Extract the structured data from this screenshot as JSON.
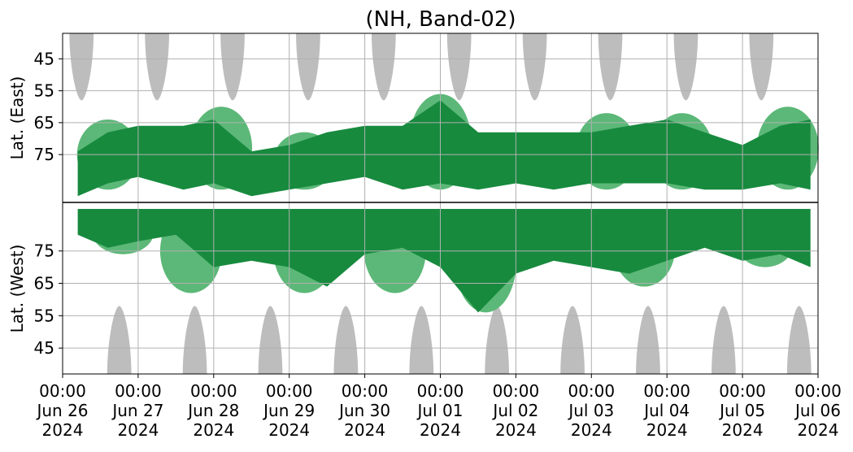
{
  "chart_data": {
    "type": "heatmap",
    "title": "(NH, Band-02)",
    "xlabel": "",
    "x_ticks": [
      {
        "time": "Jun 26 2024 00:00",
        "line1": "00:00",
        "line2": "Jun 26",
        "line3": "2024"
      },
      {
        "time": "Jun 27 2024 00:00",
        "line1": "00:00",
        "line2": "Jun 27",
        "line3": "2024"
      },
      {
        "time": "Jun 28 2024 00:00",
        "line1": "00:00",
        "line2": "Jun 28",
        "line3": "2024"
      },
      {
        "time": "Jun 29 2024 00:00",
        "line1": "00:00",
        "line2": "Jun 29",
        "line3": "2024"
      },
      {
        "time": "Jun 30 2024 00:00",
        "line1": "00:00",
        "line2": "Jun 30",
        "line3": "2024"
      },
      {
        "time": "Jul 01 2024 00:00",
        "line1": "00:00",
        "line2": "Jul 01",
        "line3": "2024"
      },
      {
        "time": "Jul 02 2024 00:00",
        "line1": "00:00",
        "line2": "Jul 02",
        "line3": "2024"
      },
      {
        "time": "Jul 03 2024 00:00",
        "line1": "00:00",
        "line2": "Jul 03",
        "line3": "2024"
      },
      {
        "time": "Jul 04 2024 00:00",
        "line1": "00:00",
        "line2": "Jul 04",
        "line3": "2024"
      },
      {
        "time": "Jul 05 2024 00:00",
        "line1": "00:00",
        "line2": "Jul 05",
        "line3": "2024"
      },
      {
        "time": "Jul 06 2024 00:00",
        "line1": "00:00",
        "line2": "Jul 06",
        "line3": "2024"
      }
    ],
    "upper_panel": {
      "ylabel": "Lat. (East)",
      "y_ticks": [
        45,
        55,
        65,
        75
      ],
      "lat_range": [
        90,
        37
      ]
    },
    "lower_panel": {
      "ylabel": "Lat. (West)",
      "y_ticks": [
        75,
        65,
        55,
        45
      ],
      "lat_range": [
        90,
        37
      ]
    },
    "grid": true,
    "colors": {
      "strong": "#178a3e",
      "weak": "#5cb878",
      "no_data": "#bdbdbd",
      "grid": "#b0b0b0",
      "divider": "#000000"
    },
    "no_data_lobes": {
      "upper_center_days": [
        0.25,
        1.25,
        2.25,
        3.25,
        4.25,
        5.25,
        6.25,
        7.25,
        8.25,
        9.25
      ],
      "lower_center_days": [
        0.75,
        1.75,
        2.75,
        3.75,
        4.75,
        5.75,
        6.75,
        7.75,
        8.75,
        9.75
      ],
      "half_width_days": 0.16,
      "tip_latitude": 58
    },
    "strong_regions": {
      "upper": [
        {
          "day": 0.2,
          "lat_min": 74,
          "lat_max": 88
        },
        {
          "day": 0.6,
          "lat_min": 68,
          "lat_max": 84
        },
        {
          "day": 1.0,
          "lat_min": 66,
          "lat_max": 82
        },
        {
          "day": 1.6,
          "lat_min": 66,
          "lat_max": 86
        },
        {
          "day": 2.0,
          "lat_min": 64,
          "lat_max": 84
        },
        {
          "day": 2.5,
          "lat_min": 74,
          "lat_max": 88
        },
        {
          "day": 3.0,
          "lat_min": 72,
          "lat_max": 86
        },
        {
          "day": 3.5,
          "lat_min": 68,
          "lat_max": 84
        },
        {
          "day": 4.0,
          "lat_min": 66,
          "lat_max": 82
        },
        {
          "day": 4.5,
          "lat_min": 66,
          "lat_max": 86
        },
        {
          "day": 5.0,
          "lat_min": 58,
          "lat_max": 84
        },
        {
          "day": 5.5,
          "lat_min": 68,
          "lat_max": 86
        },
        {
          "day": 6.0,
          "lat_min": 68,
          "lat_max": 84
        },
        {
          "day": 6.5,
          "lat_min": 68,
          "lat_max": 86
        },
        {
          "day": 7.0,
          "lat_min": 68,
          "lat_max": 84
        },
        {
          "day": 7.5,
          "lat_min": 66,
          "lat_max": 84
        },
        {
          "day": 8.0,
          "lat_min": 64,
          "lat_max": 84
        },
        {
          "day": 8.5,
          "lat_min": 68,
          "lat_max": 86
        },
        {
          "day": 9.0,
          "lat_min": 72,
          "lat_max": 86
        },
        {
          "day": 9.5,
          "lat_min": 66,
          "lat_max": 84
        },
        {
          "day": 9.9,
          "lat_min": 64,
          "lat_max": 86
        }
      ],
      "lower": [
        {
          "day": 0.2,
          "lat_min": 80,
          "lat_max": 88
        },
        {
          "day": 0.6,
          "lat_min": 76,
          "lat_max": 88
        },
        {
          "day": 1.0,
          "lat_min": 78,
          "lat_max": 88
        },
        {
          "day": 1.5,
          "lat_min": 80,
          "lat_max": 88
        },
        {
          "day": 2.0,
          "lat_min": 70,
          "lat_max": 88
        },
        {
          "day": 2.5,
          "lat_min": 72,
          "lat_max": 88
        },
        {
          "day": 3.0,
          "lat_min": 70,
          "lat_max": 88
        },
        {
          "day": 3.5,
          "lat_min": 64,
          "lat_max": 88
        },
        {
          "day": 4.0,
          "lat_min": 74,
          "lat_max": 88
        },
        {
          "day": 4.5,
          "lat_min": 76,
          "lat_max": 88
        },
        {
          "day": 5.0,
          "lat_min": 70,
          "lat_max": 88
        },
        {
          "day": 5.5,
          "lat_min": 56,
          "lat_max": 88
        },
        {
          "day": 6.0,
          "lat_min": 68,
          "lat_max": 88
        },
        {
          "day": 6.5,
          "lat_min": 72,
          "lat_max": 88
        },
        {
          "day": 7.0,
          "lat_min": 70,
          "lat_max": 88
        },
        {
          "day": 7.5,
          "lat_min": 68,
          "lat_max": 88
        },
        {
          "day": 8.0,
          "lat_min": 72,
          "lat_max": 88
        },
        {
          "day": 8.5,
          "lat_min": 76,
          "lat_max": 88
        },
        {
          "day": 9.0,
          "lat_min": 72,
          "lat_max": 88
        },
        {
          "day": 9.5,
          "lat_min": 74,
          "lat_max": 88
        },
        {
          "day": 9.9,
          "lat_min": 70,
          "lat_max": 88
        }
      ]
    },
    "weak_regions": {
      "upper": [
        {
          "day": 0.6,
          "lat_min": 64,
          "lat_max": 86
        },
        {
          "day": 2.1,
          "lat_min": 60,
          "lat_max": 86
        },
        {
          "day": 3.2,
          "lat_min": 68,
          "lat_max": 86
        },
        {
          "day": 5.0,
          "lat_min": 56,
          "lat_max": 86
        },
        {
          "day": 7.2,
          "lat_min": 62,
          "lat_max": 86
        },
        {
          "day": 8.2,
          "lat_min": 62,
          "lat_max": 86
        },
        {
          "day": 9.6,
          "lat_min": 60,
          "lat_max": 86
        }
      ],
      "lower": [
        {
          "day": 0.8,
          "lat_min": 74,
          "lat_max": 88
        },
        {
          "day": 1.7,
          "lat_min": 62,
          "lat_max": 88
        },
        {
          "day": 3.2,
          "lat_min": 62,
          "lat_max": 88
        },
        {
          "day": 4.4,
          "lat_min": 62,
          "lat_max": 88
        },
        {
          "day": 5.6,
          "lat_min": 56,
          "lat_max": 88
        },
        {
          "day": 7.7,
          "lat_min": 64,
          "lat_max": 88
        },
        {
          "day": 9.3,
          "lat_min": 70,
          "lat_max": 88
        }
      ]
    }
  }
}
